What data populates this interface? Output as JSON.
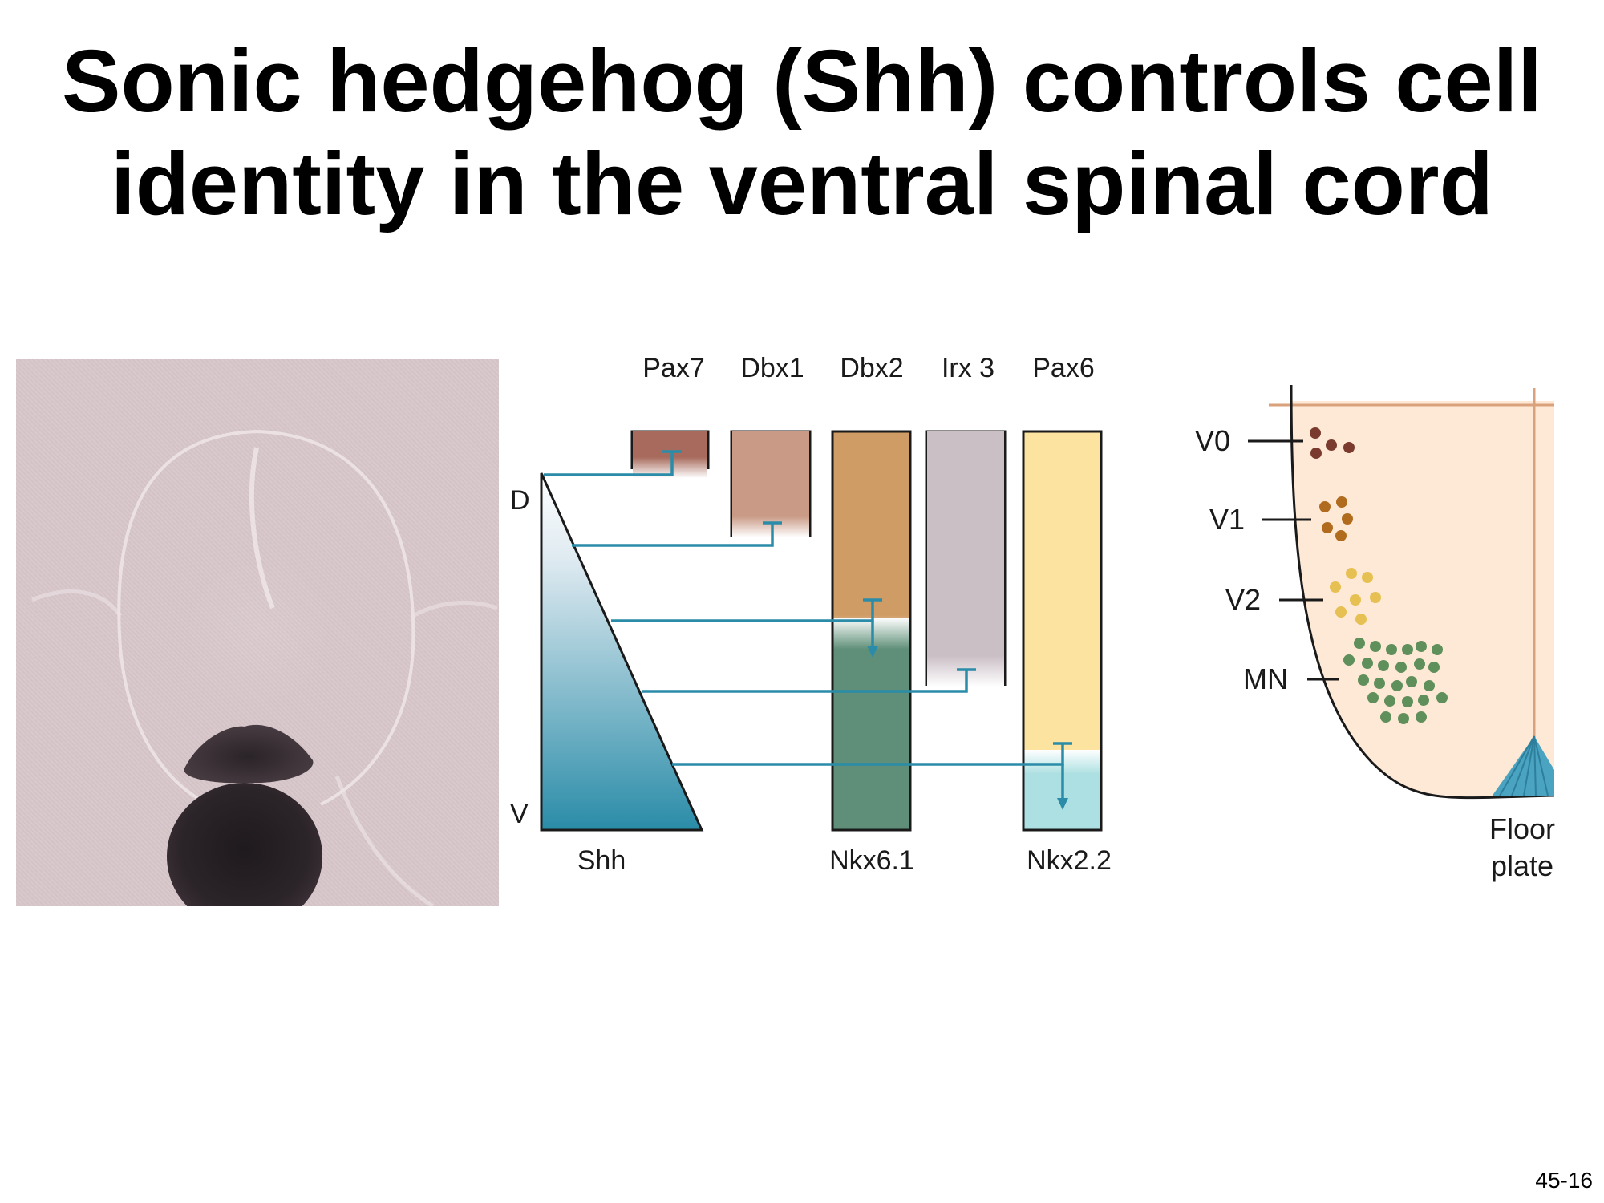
{
  "title": {
    "line1": "Sonic hedgehog (Shh) controls cell",
    "line2": "identity in the ventral spinal cord"
  },
  "slide_number": "45-16",
  "diagram": {
    "axis": {
      "dorsal": "D",
      "ventral": "V"
    },
    "top_genes": [
      "Pax7",
      "Dbx1",
      "Dbx2",
      "Irx 3",
      "Pax6"
    ],
    "bottom_labels": {
      "shh": "Shh",
      "nkx61": "Nkx6.1",
      "nkx22": "Nkx2.2"
    },
    "colors": {
      "signal": "#2a8ca8",
      "pax7": "#a86a5c",
      "dbx1": "#c99a85",
      "dbx2": "#cf9c66",
      "irx3": "#cbbfc6",
      "pax6": "#fde3a0",
      "nkx61": "#5f8f78",
      "nkx22": "#ade0e2"
    }
  },
  "cord": {
    "domains": [
      "V0",
      "V1",
      "V2",
      "MN"
    ],
    "floor_plate": {
      "line1": "Floor",
      "line2": "plate"
    },
    "colors": {
      "background": "#fde9d5",
      "v0": "#7a3b2e",
      "v1": "#b06b1f",
      "v2": "#e6c052",
      "mn": "#5f8f5b",
      "floor_plate": "#4aa3c0"
    }
  }
}
